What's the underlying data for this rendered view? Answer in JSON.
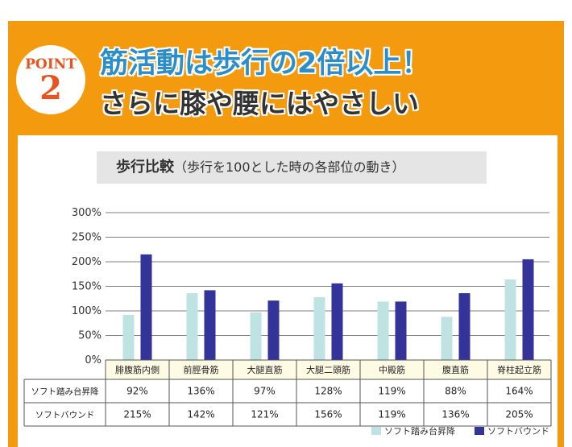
{
  "header": {
    "badge_word": "POINT",
    "badge_number": "2",
    "headline": "筋活動は歩行の2倍以上！",
    "subheadline": "さらに膝や腰にはやさしい"
  },
  "colors": {
    "frame": "#f39a0e",
    "headline": "#2b8ec9",
    "badge_text": "#e8531e",
    "series_1": "#bfe3e3",
    "series_2": "#33339a"
  },
  "chart_data": {
    "type": "bar",
    "title": "歩行比較",
    "subtitle": "（歩行を100とした時の各部位の動き）",
    "categories": [
      "腓腹筋内側",
      "前脛骨筋",
      "大腿直筋",
      "大腿二頭筋",
      "中殿筋",
      "腹直筋",
      "脊柱起立筋"
    ],
    "series": [
      {
        "name": "ソフト踏み台昇降",
        "values": [
          92,
          136,
          97,
          128,
          119,
          88,
          164
        ],
        "labels": [
          "92%",
          "136%",
          "97%",
          "128%",
          "119%",
          "88%",
          "164%"
        ]
      },
      {
        "name": "ソフトバウンド",
        "values": [
          215,
          142,
          121,
          156,
          119,
          136,
          205
        ],
        "labels": [
          "215%",
          "142%",
          "121%",
          "156%",
          "119%",
          "136%",
          "205%"
        ]
      }
    ],
    "ylim": [
      0,
      300
    ],
    "yticks": [
      0,
      50,
      100,
      150,
      200,
      250,
      300
    ],
    "ytick_labels": [
      "0%",
      "50%",
      "100%",
      "150%",
      "200%",
      "250%",
      "300%"
    ],
    "grid": true,
    "legend_position": "bottom-right"
  }
}
